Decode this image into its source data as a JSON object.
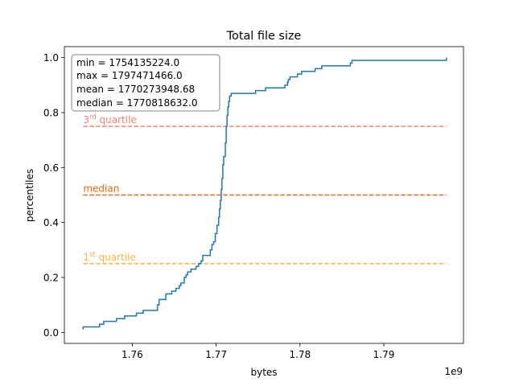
{
  "chart_data": {
    "type": "line",
    "title": "Total file size",
    "xlabel": "bytes",
    "ylabel": "percentiles",
    "x_offset_label": "1e9",
    "xlim": [
      1.7519,
      1.7995
    ],
    "ylim": [
      -0.04,
      1.04
    ],
    "x_ticks": [
      1.76,
      1.77,
      1.78,
      1.79
    ],
    "x_tick_labels": [
      "1.76",
      "1.77",
      "1.78",
      "1.79"
    ],
    "y_ticks": [
      0.0,
      0.2,
      0.4,
      0.6,
      0.8,
      1.0
    ],
    "y_tick_labels": [
      "0.0",
      "0.2",
      "0.4",
      "0.6",
      "0.8",
      "1.0"
    ],
    "grid": false,
    "stats_box": {
      "lines": [
        "min = 1754135224.0",
        "max = 1797471466.0",
        "mean = 1770273948.68",
        "median = 1770818632.0"
      ]
    },
    "reference_lines": [
      {
        "base": "3",
        "sup": "rd",
        "suffix": " quartile",
        "y": 0.75,
        "color": "#fa8072"
      },
      {
        "base": "median",
        "sup": "",
        "suffix": "",
        "y": 0.5,
        "color": "#e8680a"
      },
      {
        "base": "1",
        "sup": "st",
        "suffix": " quartile",
        "y": 0.25,
        "color": "#fbb540"
      }
    ],
    "series": [
      {
        "color": "#1f77b4",
        "points": [
          [
            1.75414,
            0.01
          ],
          [
            1.75414,
            0.02
          ],
          [
            1.7548,
            0.02
          ],
          [
            1.7561,
            0.02
          ],
          [
            1.7561,
            0.03
          ],
          [
            1.7566,
            0.03
          ],
          [
            1.7566,
            0.04
          ],
          [
            1.7581,
            0.04
          ],
          [
            1.7581,
            0.05
          ],
          [
            1.7591,
            0.05
          ],
          [
            1.7591,
            0.06
          ],
          [
            1.7605,
            0.06
          ],
          [
            1.7605,
            0.07
          ],
          [
            1.7613,
            0.07
          ],
          [
            1.7613,
            0.08
          ],
          [
            1.7625,
            0.08
          ],
          [
            1.763,
            0.08
          ],
          [
            1.763,
            0.1
          ],
          [
            1.7632,
            0.1
          ],
          [
            1.7632,
            0.12
          ],
          [
            1.764,
            0.12
          ],
          [
            1.764,
            0.14
          ],
          [
            1.7647,
            0.14
          ],
          [
            1.7647,
            0.15
          ],
          [
            1.7652,
            0.15
          ],
          [
            1.7652,
            0.16
          ],
          [
            1.7656,
            0.16
          ],
          [
            1.7656,
            0.17
          ],
          [
            1.7658,
            0.17
          ],
          [
            1.7658,
            0.18
          ],
          [
            1.7662,
            0.18
          ],
          [
            1.7662,
            0.2
          ],
          [
            1.7664,
            0.2
          ],
          [
            1.7664,
            0.21
          ],
          [
            1.7666,
            0.21
          ],
          [
            1.7666,
            0.22
          ],
          [
            1.767,
            0.22
          ],
          [
            1.767,
            0.23
          ],
          [
            1.7676,
            0.23
          ],
          [
            1.7676,
            0.24
          ],
          [
            1.7679,
            0.24
          ],
          [
            1.7679,
            0.25
          ],
          [
            1.7682,
            0.25
          ],
          [
            1.7682,
            0.26
          ],
          [
            1.7684,
            0.26
          ],
          [
            1.7684,
            0.28
          ],
          [
            1.7693,
            0.28
          ],
          [
            1.7693,
            0.3
          ],
          [
            1.7695,
            0.3
          ],
          [
            1.7695,
            0.32
          ],
          [
            1.7697,
            0.32
          ],
          [
            1.7697,
            0.33
          ],
          [
            1.7699,
            0.33
          ],
          [
            1.7699,
            0.36
          ],
          [
            1.7701,
            0.36
          ],
          [
            1.7701,
            0.39
          ],
          [
            1.7703,
            0.39
          ],
          [
            1.7703,
            0.42
          ],
          [
            1.7704,
            0.42
          ],
          [
            1.7704,
            0.45
          ],
          [
            1.7705,
            0.45
          ],
          [
            1.7705,
            0.48
          ],
          [
            1.7706,
            0.48
          ],
          [
            1.7706,
            0.52
          ],
          [
            1.7707,
            0.52
          ],
          [
            1.7707,
            0.56
          ],
          [
            1.7708,
            0.56
          ],
          [
            1.7708,
            0.61
          ],
          [
            1.7709,
            0.61
          ],
          [
            1.7709,
            0.64
          ],
          [
            1.7711,
            0.64
          ],
          [
            1.7711,
            0.69
          ],
          [
            1.7712,
            0.69
          ],
          [
            1.7712,
            0.75
          ],
          [
            1.7713,
            0.75
          ],
          [
            1.7713,
            0.79
          ],
          [
            1.7714,
            0.79
          ],
          [
            1.7714,
            0.82
          ],
          [
            1.7715,
            0.82
          ],
          [
            1.7715,
            0.84
          ],
          [
            1.7716,
            0.84
          ],
          [
            1.7716,
            0.86
          ],
          [
            1.7718,
            0.86
          ],
          [
            1.7718,
            0.87
          ],
          [
            1.7747,
            0.87
          ],
          [
            1.7747,
            0.88
          ],
          [
            1.7759,
            0.88
          ],
          [
            1.7759,
            0.89
          ],
          [
            1.7782,
            0.89
          ],
          [
            1.7782,
            0.9
          ],
          [
            1.7785,
            0.9
          ],
          [
            1.7785,
            0.91
          ],
          [
            1.7786,
            0.91
          ],
          [
            1.7786,
            0.92
          ],
          [
            1.7788,
            0.92
          ],
          [
            1.7788,
            0.93
          ],
          [
            1.7797,
            0.93
          ],
          [
            1.7797,
            0.94
          ],
          [
            1.7802,
            0.94
          ],
          [
            1.7802,
            0.95
          ],
          [
            1.7818,
            0.95
          ],
          [
            1.7818,
            0.96
          ],
          [
            1.7826,
            0.96
          ],
          [
            1.7826,
            0.97
          ],
          [
            1.786,
            0.97
          ],
          [
            1.786,
            0.98
          ],
          [
            1.7862,
            0.98
          ],
          [
            1.7862,
            0.99
          ],
          [
            1.79746,
            0.99
          ],
          [
            1.79746,
            1.0
          ]
        ]
      }
    ]
  }
}
